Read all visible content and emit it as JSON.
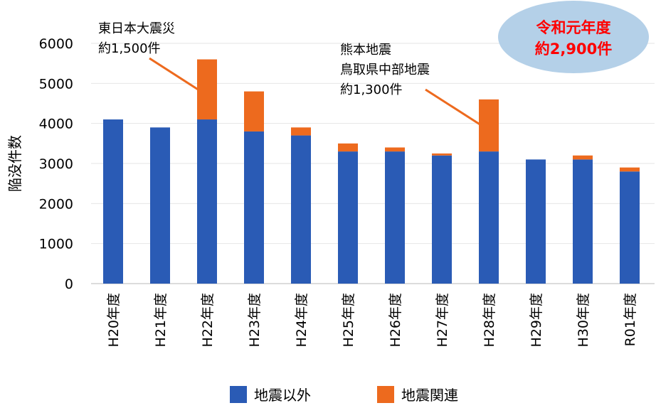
{
  "chart_data": {
    "type": "bar",
    "stacked": true,
    "title": "",
    "xlabel": "",
    "ylabel": "陥没件数",
    "ylim": [
      0,
      6000
    ],
    "yticks": [
      0,
      1000,
      2000,
      3000,
      4000,
      5000,
      6000
    ],
    "grid": true,
    "categories": [
      "H20年度",
      "H21年度",
      "H22年度",
      "H23年度",
      "H24年度",
      "H25年度",
      "H26年度",
      "H27年度",
      "H28年度",
      "H29年度",
      "H30年度",
      "R01年度"
    ],
    "series": [
      {
        "name": "地震以外",
        "color": "#2a5bb5",
        "values": [
          4100,
          3900,
          4100,
          3800,
          3700,
          3300,
          3300,
          3200,
          3300,
          3100,
          3100,
          2800
        ]
      },
      {
        "name": "地震関連",
        "color": "#ed6a1e",
        "values": [
          0,
          0,
          1500,
          1000,
          200,
          200,
          100,
          50,
          1300,
          0,
          100,
          100
        ]
      }
    ],
    "legend_position": "bottom",
    "annotations": [
      {
        "lines": [
          "東日本大震災",
          "約1,500件"
        ],
        "target": "H22年度"
      },
      {
        "lines": [
          "熊本地震",
          "鳥取県中部地震",
          "約1,300件"
        ],
        "target": "H28年度"
      }
    ],
    "badge": {
      "lines": [
        "令和元年度",
        "約2,900件"
      ],
      "color": "#ff0000",
      "background": "#b4d0e8"
    }
  }
}
